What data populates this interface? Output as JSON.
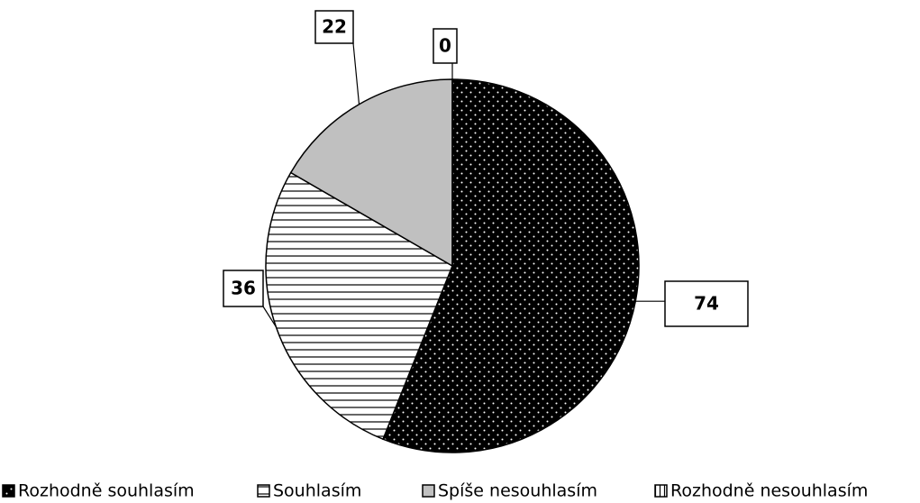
{
  "chart_data": {
    "type": "pie",
    "categories": [
      "Rozhodně souhlasím",
      "Souhlasím",
      "Spíše nesouhlasím",
      "Rozhodně nesouhlasím"
    ],
    "values": [
      74,
      36,
      22,
      0
    ],
    "colors": [
      "#000000",
      "#ffffff",
      "#c0c0c0",
      "#ffffff"
    ],
    "patterns": [
      "dots",
      "hlines",
      "solid",
      "vlines"
    ],
    "legend": "bottom"
  }
}
